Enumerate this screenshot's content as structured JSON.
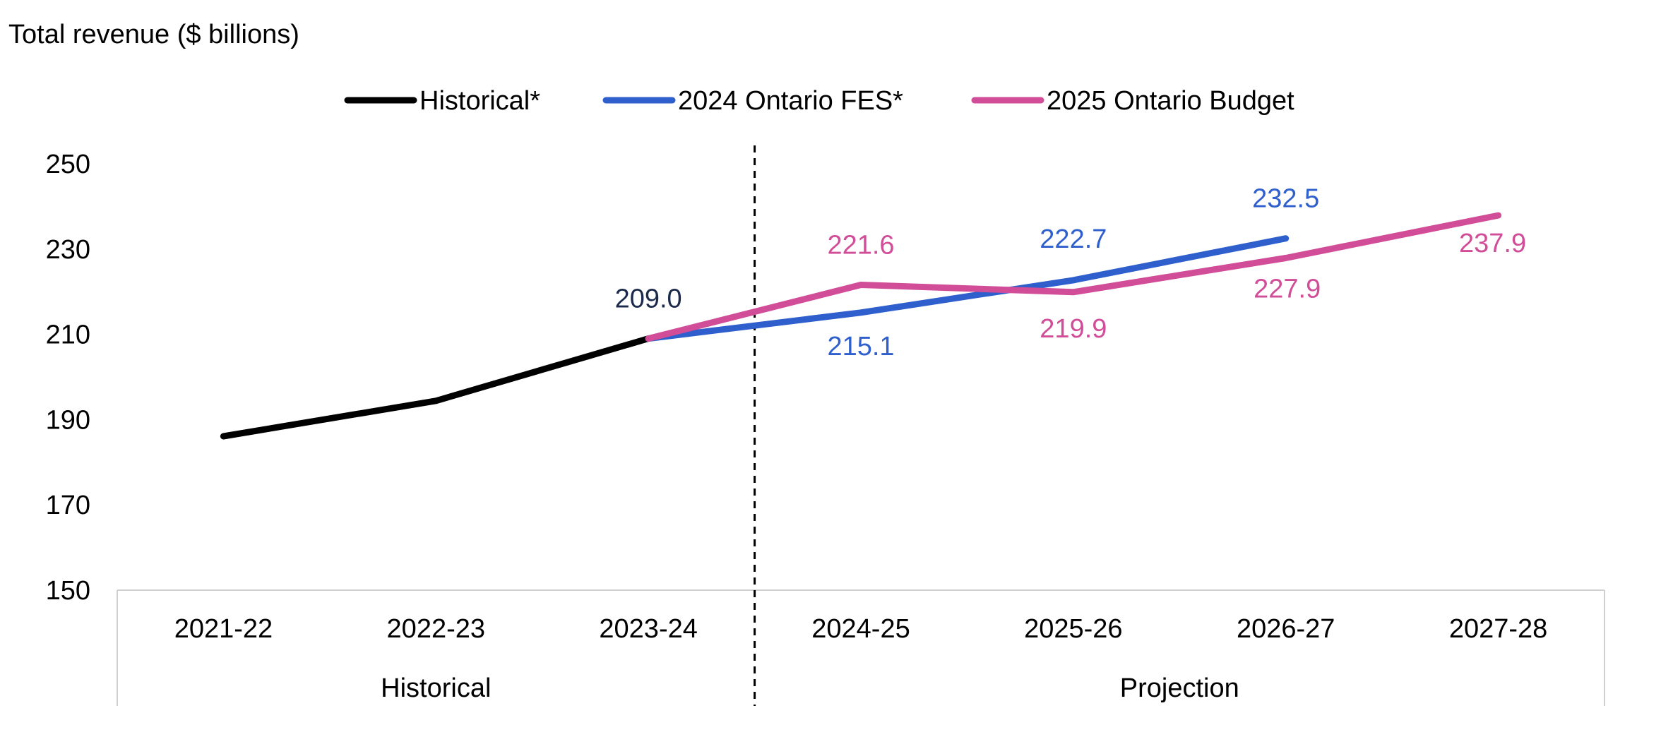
{
  "chart_data": {
    "type": "line",
    "ylabel": "Total revenue ($ billions)",
    "ylim": [
      150,
      250
    ],
    "yticks": [
      "250",
      "230",
      "210",
      "190",
      "170",
      "150"
    ],
    "categories": [
      "2021-22",
      "2022-23",
      "2023-24",
      "2024-25",
      "2025-26",
      "2026-27",
      "2027-28"
    ],
    "category_groups": [
      {
        "label": "Historical"
      },
      {
        "label": "Projection"
      }
    ],
    "legend_position": "top",
    "series": [
      {
        "name": "Historical*",
        "color": "#000000",
        "values": [
          186.1,
          194.4,
          209.0,
          null,
          null,
          null,
          null
        ],
        "labels": [
          "",
          "",
          "209.0",
          "",
          "",
          "",
          ""
        ]
      },
      {
        "name": "2024 Ontario FES*",
        "color": "#2E5FCC",
        "values": [
          null,
          null,
          209.0,
          215.1,
          222.7,
          232.5,
          null
        ],
        "labels": [
          "",
          "",
          "",
          "215.1",
          "222.7",
          "232.5",
          ""
        ]
      },
      {
        "name": "2025 Ontario Budget",
        "color": "#D14D98",
        "values": [
          null,
          null,
          209.0,
          221.6,
          219.9,
          227.9,
          237.9
        ],
        "labels": [
          "",
          "",
          "",
          "221.6",
          "219.9",
          "227.9",
          "237.9"
        ]
      }
    ],
    "label_colors": {
      "historical": "#1B2A4A",
      "fes": "#2E5FCC",
      "budget": "#D14D98"
    },
    "grid": false
  }
}
